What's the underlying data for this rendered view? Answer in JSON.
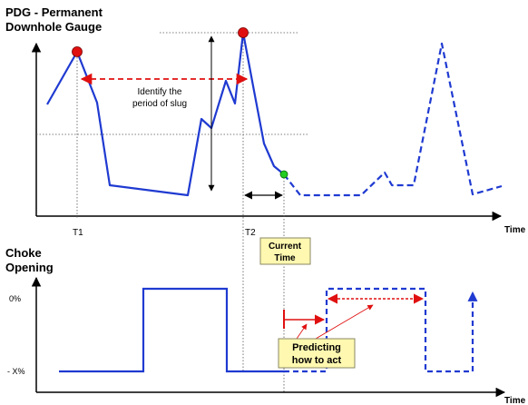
{
  "top_chart": {
    "title_line1": "PDG - Permanent",
    "title_line2": "Downhole Gauge",
    "x_axis_label": "Time",
    "annotation_line1": "Identify the",
    "annotation_line2": "period of slug",
    "tick_t1": "T1",
    "tick_t2": "T2"
  },
  "current_time_box": {
    "line1": "Current",
    "line2": "Time"
  },
  "bottom_chart": {
    "title_line1": "Choke",
    "title_line2": "Opening",
    "y_tick_top": "0%",
    "y_tick_bottom": "- X%",
    "x_axis_label": "Time"
  },
  "predicting_box": {
    "line1": "Predicting",
    "line2": "how to act"
  },
  "colors": {
    "line": "#1f3ad1",
    "peak_marker": "#e01010",
    "current_marker": "#22cc22",
    "annotation": "#e01010",
    "note_box_fill": "#fff8b0",
    "note_box_border": "#888866"
  }
}
